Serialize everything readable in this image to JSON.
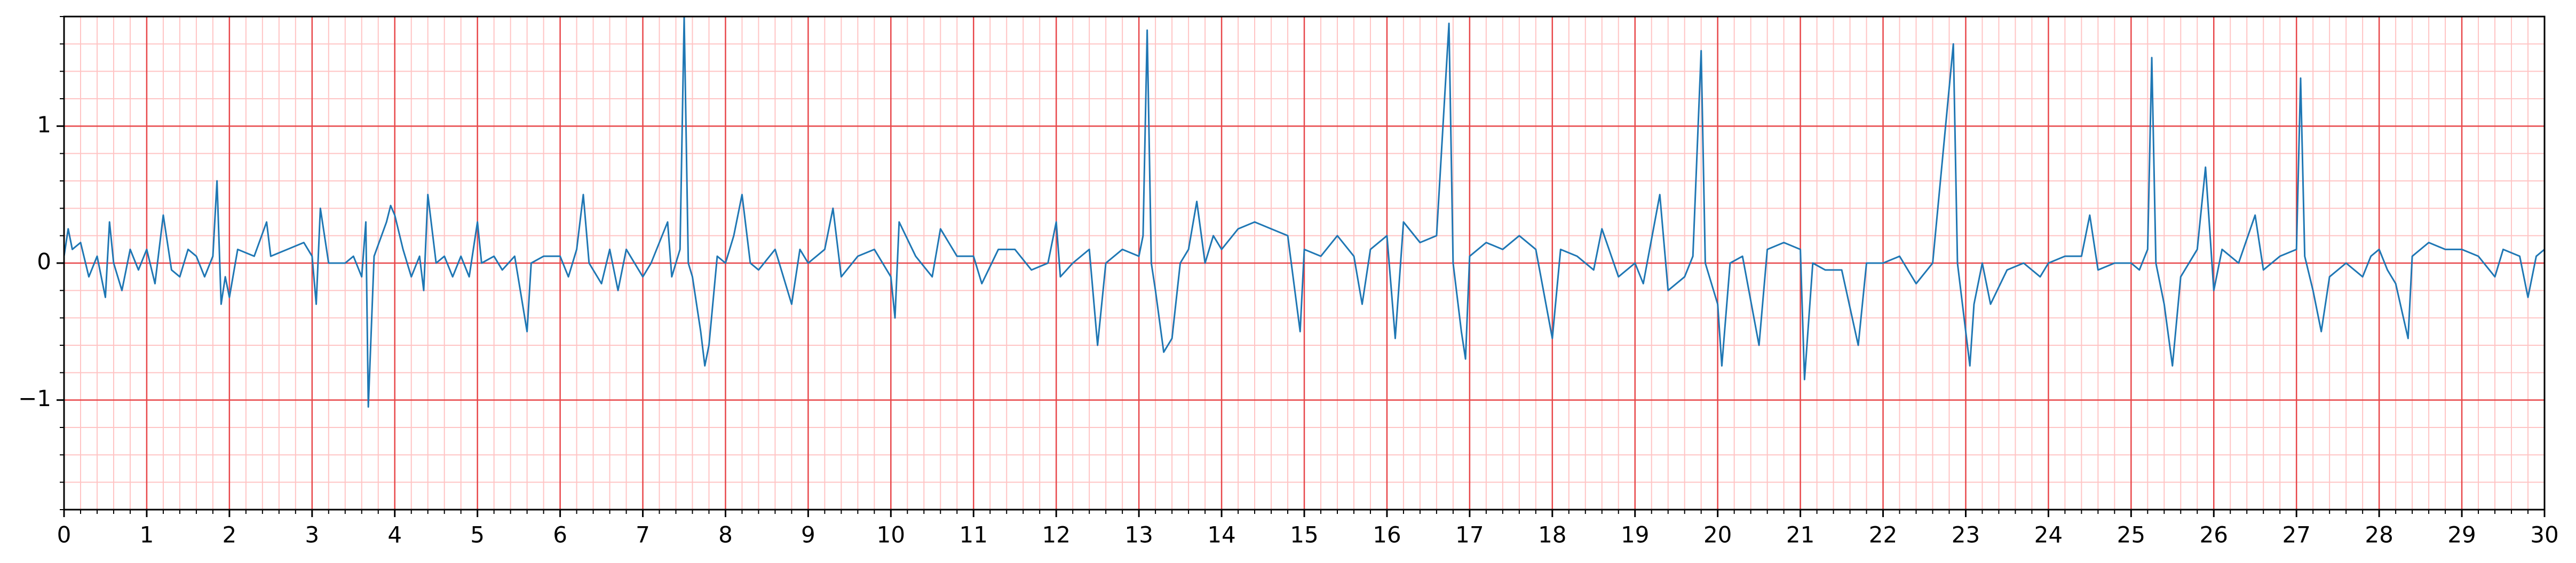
{
  "chart_data": {
    "type": "line",
    "color": "#1f77b4",
    "grid": true,
    "major_grid_color": "#e8474a",
    "minor_grid_color": "#ffc4c4",
    "xlim": [
      0,
      30
    ],
    "ylim": [
      -1.8,
      1.8
    ],
    "xticks": [
      0,
      1,
      2,
      3,
      4,
      5,
      6,
      7,
      8,
      9,
      10,
      11,
      12,
      13,
      14,
      15,
      16,
      17,
      18,
      19,
      20,
      21,
      22,
      23,
      24,
      25,
      26,
      27,
      28,
      29,
      30
    ],
    "yticks": [
      {
        "value": -1,
        "label": "−1"
      },
      0,
      1
    ],
    "x": [
      0,
      0.05,
      0.1,
      0.2,
      0.3,
      0.4,
      0.5,
      0.55,
      0.6,
      0.7,
      0.8,
      0.9,
      1.0,
      1.1,
      1.2,
      1.3,
      1.4,
      1.5,
      1.6,
      1.7,
      1.8,
      1.85,
      1.9,
      1.95,
      2.0,
      2.1,
      2.3,
      2.45,
      2.5,
      2.7,
      2.9,
      3.0,
      3.05,
      3.1,
      3.2,
      3.4,
      3.5,
      3.6,
      3.65,
      3.68,
      3.75,
      3.9,
      3.95,
      4.0,
      4.1,
      4.2,
      4.3,
      4.35,
      4.4,
      4.5,
      4.6,
      4.7,
      4.8,
      4.9,
      5.0,
      5.05,
      5.2,
      5.3,
      5.45,
      5.6,
      5.65,
      5.8,
      6.0,
      6.1,
      6.2,
      6.28,
      6.35,
      6.5,
      6.6,
      6.7,
      6.8,
      7.0,
      7.1,
      7.3,
      7.35,
      7.45,
      7.5,
      7.55,
      7.6,
      7.7,
      7.75,
      7.8,
      7.9,
      8.0,
      8.1,
      8.2,
      8.3,
      8.4,
      8.6,
      8.8,
      8.9,
      9.0,
      9.2,
      9.3,
      9.4,
      9.6,
      9.8,
      10.0,
      10.05,
      10.1,
      10.3,
      10.5,
      10.6,
      10.8,
      11.0,
      11.1,
      11.3,
      11.5,
      11.7,
      11.9,
      12.0,
      12.05,
      12.2,
      12.4,
      12.5,
      12.6,
      12.8,
      13.0,
      13.05,
      13.1,
      13.15,
      13.2,
      13.3,
      13.4,
      13.5,
      13.6,
      13.7,
      13.8,
      13.9,
      14.0,
      14.2,
      14.4,
      14.6,
      14.8,
      14.95,
      15.0,
      15.2,
      15.4,
      15.6,
      15.7,
      15.8,
      16.0,
      16.1,
      16.2,
      16.4,
      16.6,
      16.75,
      16.8,
      16.9,
      16.95,
      17.0,
      17.2,
      17.4,
      17.6,
      17.8,
      18.0,
      18.1,
      18.3,
      18.5,
      18.6,
      18.8,
      19.0,
      19.1,
      19.3,
      19.4,
      19.6,
      19.7,
      19.8,
      19.85,
      20.0,
      20.05,
      20.15,
      20.3,
      20.5,
      20.6,
      20.8,
      21.0,
      21.05,
      21.15,
      21.3,
      21.5,
      21.7,
      21.8,
      22.0,
      22.2,
      22.4,
      22.6,
      22.85,
      22.9,
      23.0,
      23.05,
      23.1,
      23.2,
      23.3,
      23.5,
      23.7,
      23.9,
      24.0,
      24.2,
      24.4,
      24.5,
      24.6,
      24.8,
      25.0,
      25.1,
      25.2,
      25.25,
      25.3,
      25.4,
      25.5,
      25.6,
      25.8,
      25.9,
      26.0,
      26.1,
      26.3,
      26.5,
      26.6,
      26.8,
      27.0,
      27.05,
      27.1,
      27.2,
      27.3,
      27.4,
      27.6,
      27.8,
      27.9,
      28.0,
      28.1,
      28.2,
      28.35,
      28.4,
      28.6,
      28.8,
      29.0,
      29.2,
      29.4,
      29.5,
      29.7,
      29.8,
      29.9,
      30.0
    ],
    "values": [
      0.05,
      0.25,
      0.1,
      0.15,
      -0.1,
      0.05,
      -0.25,
      0.3,
      0,
      -0.2,
      0.1,
      -0.05,
      0.1,
      -0.15,
      0.35,
      -0.05,
      -0.1,
      0.1,
      0.05,
      -0.1,
      0.05,
      0.6,
      -0.3,
      -0.1,
      -0.25,
      0.1,
      0.05,
      0.3,
      0.05,
      0.1,
      0.15,
      0.05,
      -0.3,
      0.4,
      0,
      0,
      0.05,
      -0.1,
      0.3,
      -1.05,
      0.05,
      0.3,
      0.42,
      0.35,
      0.1,
      -0.1,
      0.05,
      -0.2,
      0.5,
      0,
      0.05,
      -0.1,
      0.05,
      -0.1,
      0.3,
      0,
      0.05,
      -0.05,
      0.05,
      -0.5,
      0,
      0.05,
      0.05,
      -0.1,
      0.1,
      0.5,
      0,
      -0.15,
      0.1,
      -0.2,
      0.1,
      -0.1,
      0,
      0.3,
      -0.1,
      0.1,
      1.8,
      0,
      -0.1,
      -0.5,
      -0.75,
      -0.6,
      0.05,
      0,
      0.2,
      0.5,
      0,
      -0.05,
      0.1,
      -0.3,
      0.1,
      0,
      0.1,
      0.4,
      -0.1,
      0.05,
      0.1,
      -0.1,
      -0.4,
      0.3,
      0.05,
      -0.1,
      0.25,
      0.05,
      0.05,
      -0.15,
      0.1,
      0.1,
      -0.05,
      0,
      0.3,
      -0.1,
      0,
      0.1,
      -0.6,
      0,
      0.1,
      0.05,
      0.2,
      1.7,
      0,
      -0.2,
      -0.65,
      -0.55,
      0,
      0.1,
      0.45,
      0,
      0.2,
      0.1,
      0.25,
      0.3,
      0.25,
      0.2,
      -0.5,
      0.1,
      0.05,
      0.2,
      0.05,
      -0.3,
      0.1,
      0.2,
      -0.55,
      0.3,
      0.15,
      0.2,
      1.75,
      0,
      -0.5,
      -0.7,
      0.05,
      0.15,
      0.1,
      0.2,
      0.1,
      -0.55,
      0.1,
      0.05,
      -0.05,
      0.25,
      -0.1,
      0,
      -0.15,
      0.5,
      -0.2,
      -0.1,
      0.05,
      1.55,
      0,
      -0.3,
      -0.75,
      0,
      0.05,
      -0.6,
      0.1,
      0.15,
      0.1,
      -0.85,
      0,
      -0.05,
      -0.05,
      -0.6,
      0,
      0,
      0.05,
      -0.15,
      0,
      1.6,
      0,
      -0.5,
      -0.75,
      -0.3,
      0,
      -0.3,
      -0.05,
      0,
      -0.1,
      0,
      0.05,
      0.05,
      0.35,
      -0.05,
      0,
      0,
      -0.05,
      0.1,
      1.5,
      0,
      -0.3,
      -0.75,
      -0.1,
      0.1,
      0.7,
      -0.2,
      0.1,
      0,
      0.35,
      -0.05,
      0.05,
      0.1,
      1.35,
      0.05,
      -0.2,
      -0.5,
      -0.1,
      0,
      -0.1,
      0.05,
      0.1,
      -0.05,
      -0.15,
      -0.55,
      0.05,
      0.15,
      0.1,
      0.1,
      0.05,
      -0.1,
      0.1,
      0.05,
      -0.25,
      0.05,
      0.1
    ]
  }
}
